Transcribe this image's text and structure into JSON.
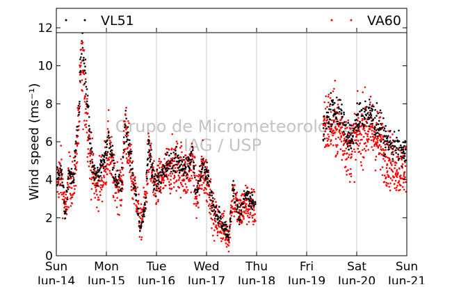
{
  "chart_data": {
    "type": "scatter",
    "title": "",
    "xlabel": "",
    "ylabel": "Wind speed (ms⁻¹)",
    "ylim": [
      0,
      12
    ],
    "yticks": [
      0,
      2,
      4,
      6,
      8,
      10,
      12
    ],
    "xlim": [
      "2015-06-14",
      "2015-06-21"
    ],
    "x_ticks": [
      {
        "day": "Sun",
        "date": "Jun-14"
      },
      {
        "day": "Mon",
        "date": "Jun-15"
      },
      {
        "day": "Tue",
        "date": "Jun-16"
      },
      {
        "day": "Wed",
        "date": "Jun-17"
      },
      {
        "day": "Thu",
        "date": "Jun-18"
      },
      {
        "day": "Fri",
        "date": "Jun-19"
      },
      {
        "day": "Sat",
        "date": "Jun-20"
      },
      {
        "day": "Sun",
        "date": "Jun-21"
      }
    ],
    "grid": "vertical",
    "legend": "top",
    "watermark": [
      "Grupo de Micrometeorologia",
      "IAG / USP"
    ],
    "series": [
      {
        "name": "VL51",
        "color": "#000000",
        "profile_days_from_jun14": [
          [
            0.0,
            4.2
          ],
          [
            0.1,
            4.6
          ],
          [
            0.18,
            2.0
          ],
          [
            0.25,
            4.4
          ],
          [
            0.35,
            4.0
          ],
          [
            0.45,
            7.5
          ],
          [
            0.5,
            11.3
          ],
          [
            0.58,
            9.5
          ],
          [
            0.68,
            5.8
          ],
          [
            0.8,
            4.0
          ],
          [
            0.95,
            5.0
          ],
          [
            1.05,
            6.3
          ],
          [
            1.15,
            4.3
          ],
          [
            1.3,
            3.7
          ],
          [
            1.38,
            7.3
          ],
          [
            1.5,
            4.8
          ],
          [
            1.6,
            3.0
          ],
          [
            1.68,
            1.3
          ],
          [
            1.78,
            2.8
          ],
          [
            1.85,
            6.0
          ],
          [
            1.95,
            3.8
          ],
          [
            2.1,
            4.3
          ],
          [
            2.25,
            4.8
          ],
          [
            2.45,
            5.0
          ],
          [
            2.6,
            4.5
          ],
          [
            2.72,
            5.3
          ],
          [
            2.8,
            3.2
          ],
          [
            2.92,
            5.0
          ],
          [
            3.05,
            4.0
          ],
          [
            3.15,
            2.3
          ],
          [
            3.3,
            1.8
          ],
          [
            3.45,
            0.9
          ],
          [
            3.52,
            3.8
          ],
          [
            3.65,
            2.0
          ],
          [
            3.78,
            3.3
          ],
          [
            3.9,
            2.8
          ]
        ],
        "profile_days_from_jun20": [
          [
            -0.65,
            6.5
          ],
          [
            -0.55,
            7.5
          ],
          [
            -0.45,
            7.8
          ],
          [
            -0.3,
            7.5
          ],
          [
            -0.15,
            6.0
          ],
          [
            0.0,
            7.0
          ],
          [
            0.15,
            7.5
          ],
          [
            0.3,
            7.4
          ],
          [
            0.45,
            6.8
          ],
          [
            0.6,
            6.0
          ],
          [
            0.75,
            5.8
          ],
          [
            0.9,
            5.5
          ],
          [
            1.0,
            5.5
          ],
          [
            1.1,
            5.3
          ]
        ]
      },
      {
        "name": "VA60",
        "color": "#ff0000",
        "profile_days_from_jun14": [
          [
            0.0,
            4.0
          ],
          [
            0.1,
            4.3
          ],
          [
            0.18,
            2.2
          ],
          [
            0.25,
            4.0
          ],
          [
            0.35,
            3.8
          ],
          [
            0.45,
            7.0
          ],
          [
            0.5,
            10.0
          ],
          [
            0.58,
            8.5
          ],
          [
            0.68,
            5.0
          ],
          [
            0.8,
            3.5
          ],
          [
            0.95,
            4.5
          ],
          [
            1.05,
            5.8
          ],
          [
            1.15,
            4.0
          ],
          [
            1.3,
            3.5
          ],
          [
            1.38,
            7.0
          ],
          [
            1.5,
            4.2
          ],
          [
            1.6,
            3.2
          ],
          [
            1.68,
            1.5
          ],
          [
            1.78,
            3.0
          ],
          [
            1.85,
            5.5
          ],
          [
            1.95,
            3.5
          ],
          [
            2.1,
            4.0
          ],
          [
            2.25,
            4.6
          ],
          [
            2.45,
            4.8
          ],
          [
            2.6,
            4.2
          ],
          [
            2.72,
            5.0
          ],
          [
            2.8,
            3.0
          ],
          [
            2.92,
            4.6
          ],
          [
            3.05,
            3.6
          ],
          [
            3.15,
            2.0
          ],
          [
            3.3,
            1.6
          ],
          [
            3.45,
            1.0
          ],
          [
            3.52,
            3.3
          ],
          [
            3.65,
            2.2
          ],
          [
            3.78,
            2.8
          ],
          [
            3.9,
            2.5
          ]
        ],
        "profile_days_from_jun20": [
          [
            -0.65,
            7.0
          ],
          [
            -0.55,
            7.0
          ],
          [
            -0.45,
            7.0
          ],
          [
            -0.3,
            6.5
          ],
          [
            -0.15,
            5.5
          ],
          [
            0.0,
            6.2
          ],
          [
            0.15,
            6.8
          ],
          [
            0.3,
            6.6
          ],
          [
            0.45,
            6.0
          ],
          [
            0.6,
            5.2
          ],
          [
            0.75,
            4.8
          ],
          [
            0.9,
            4.5
          ],
          [
            1.0,
            4.8
          ],
          [
            1.1,
            5.5
          ]
        ]
      }
    ]
  }
}
